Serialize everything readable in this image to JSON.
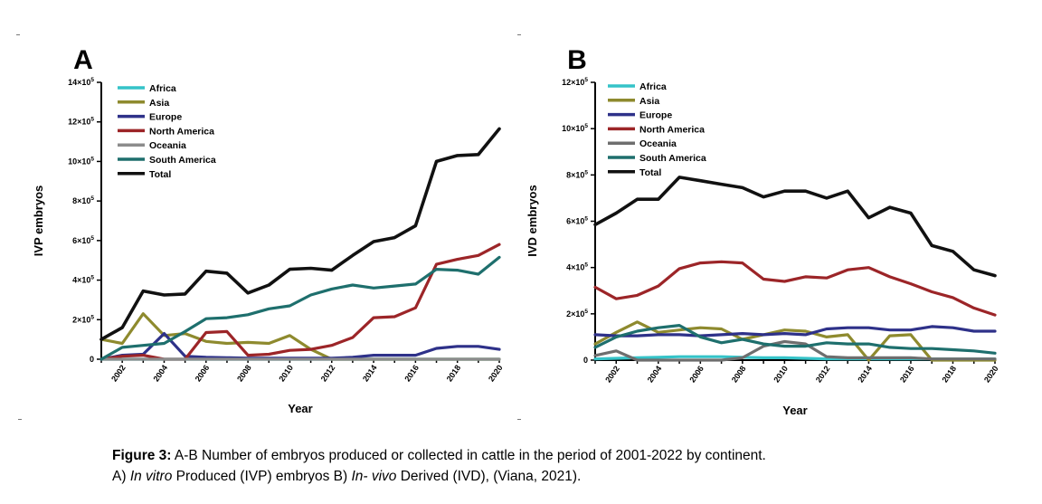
{
  "chart_data": [
    {
      "type": "line",
      "panel_label": "A",
      "xlabel": "Year",
      "ylabel": "IVP embryos",
      "x": [
        2001,
        2002,
        2003,
        2004,
        2005,
        2006,
        2007,
        2008,
        2009,
        2010,
        2011,
        2012,
        2013,
        2014,
        2015,
        2016,
        2017,
        2018,
        2019,
        2020
      ],
      "xticks": [
        "2002",
        "2004",
        "2006",
        "2008",
        "2010",
        "2012",
        "2014",
        "2016",
        "2018",
        "2020"
      ],
      "yticks": [
        {
          "value": 0,
          "base": "0",
          "exp": ""
        },
        {
          "value": 200000,
          "base": "2×10",
          "exp": "5"
        },
        {
          "value": 400000,
          "base": "4×10",
          "exp": "5"
        },
        {
          "value": 600000,
          "base": "6×10",
          "exp": "5"
        },
        {
          "value": 800000,
          "base": "8×10",
          "exp": "5"
        },
        {
          "value": 1000000,
          "base": "10×10",
          "exp": "5"
        },
        {
          "value": 1200000,
          "base": "12×10",
          "exp": "5"
        },
        {
          "value": 1400000,
          "base": "14×10",
          "exp": "5"
        }
      ],
      "ylim": [
        0,
        1400000
      ],
      "legend_position": "top-left",
      "series": [
        {
          "name": "Africa",
          "color": "#35c3c8",
          "values": [
            0,
            0,
            0,
            0,
            0,
            0,
            0,
            0,
            0,
            0,
            0,
            0,
            0,
            0,
            0,
            0,
            0,
            0,
            0,
            0
          ]
        },
        {
          "name": "Asia",
          "color": "#8e8a2e",
          "values": [
            100000,
            80000,
            230000,
            120000,
            130000,
            90000,
            80000,
            85000,
            80000,
            120000,
            50000,
            0,
            0,
            0,
            0,
            0,
            0,
            0,
            0,
            0
          ]
        },
        {
          "name": "Europe",
          "color": "#2e3189",
          "values": [
            0,
            20000,
            25000,
            130000,
            15000,
            10000,
            8000,
            5000,
            5000,
            5000,
            5000,
            5000,
            10000,
            20000,
            20000,
            20000,
            55000,
            65000,
            65000,
            50000
          ]
        },
        {
          "name": "North America",
          "color": "#9c2528",
          "values": [
            0,
            15000,
            20000,
            0,
            0,
            135000,
            140000,
            20000,
            25000,
            45000,
            50000,
            70000,
            110000,
            210000,
            215000,
            260000,
            480000,
            505000,
            525000,
            580000
          ]
        },
        {
          "name": "Oceania",
          "color": "#8c8c8c",
          "values": [
            0,
            0,
            0,
            0,
            0,
            0,
            0,
            0,
            0,
            0,
            0,
            0,
            0,
            0,
            0,
            0,
            0,
            0,
            0,
            0
          ]
        },
        {
          "name": "South America",
          "color": "#1e6f6d",
          "values": [
            0,
            60000,
            70000,
            80000,
            140000,
            205000,
            210000,
            225000,
            255000,
            270000,
            325000,
            355000,
            375000,
            360000,
            370000,
            380000,
            455000,
            450000,
            430000,
            515000
          ]
        },
        {
          "name": "Total",
          "color": "#111111",
          "values": [
            100000,
            160000,
            345000,
            325000,
            330000,
            445000,
            435000,
            335000,
            375000,
            455000,
            460000,
            450000,
            525000,
            595000,
            615000,
            675000,
            1000000,
            1030000,
            1035000,
            1165000
          ]
        }
      ]
    },
    {
      "type": "line",
      "panel_label": "B",
      "xlabel": "Year",
      "ylabel": "IVD embryos",
      "x": [
        2001,
        2002,
        2003,
        2004,
        2005,
        2006,
        2007,
        2008,
        2009,
        2010,
        2011,
        2012,
        2013,
        2014,
        2015,
        2016,
        2017,
        2018,
        2019,
        2020
      ],
      "xticks": [
        "2002",
        "2004",
        "2006",
        "2008",
        "2010",
        "2012",
        "2014",
        "2016",
        "2018",
        "2020"
      ],
      "yticks": [
        {
          "value": 0,
          "base": "0",
          "exp": ""
        },
        {
          "value": 200000,
          "base": "2×10",
          "exp": "5"
        },
        {
          "value": 400000,
          "base": "4×10",
          "exp": "5"
        },
        {
          "value": 600000,
          "base": "6×10",
          "exp": "5"
        },
        {
          "value": 800000,
          "base": "8×10",
          "exp": "5"
        },
        {
          "value": 1000000,
          "base": "10×10",
          "exp": "5"
        },
        {
          "value": 1200000,
          "base": "12×10",
          "exp": "5"
        }
      ],
      "ylim": [
        0,
        1200000
      ],
      "legend_position": "top-left",
      "series": [
        {
          "name": "Africa",
          "color": "#35c3c8",
          "values": [
            5000,
            8000,
            10000,
            12000,
            15000,
            15000,
            15000,
            12000,
            10000,
            10000,
            8000,
            5000,
            5000,
            5000,
            5000,
            5000,
            5000,
            5000,
            5000,
            5000
          ]
        },
        {
          "name": "Asia",
          "color": "#8e8a2e",
          "values": [
            70000,
            120000,
            165000,
            120000,
            130000,
            140000,
            135000,
            90000,
            110000,
            130000,
            125000,
            100000,
            110000,
            0,
            105000,
            110000,
            0,
            0,
            0,
            0
          ]
        },
        {
          "name": "Europe",
          "color": "#2e3189",
          "values": [
            110000,
            105000,
            105000,
            110000,
            110000,
            105000,
            110000,
            115000,
            110000,
            115000,
            110000,
            135000,
            140000,
            140000,
            130000,
            130000,
            145000,
            140000,
            125000,
            125000
          ]
        },
        {
          "name": "North America",
          "color": "#9c2528",
          "values": [
            315000,
            265000,
            280000,
            320000,
            395000,
            420000,
            425000,
            420000,
            350000,
            340000,
            360000,
            355000,
            390000,
            400000,
            360000,
            330000,
            295000,
            270000,
            225000,
            195000
          ]
        },
        {
          "name": "Oceania",
          "color": "#6e6e6e",
          "values": [
            20000,
            40000,
            0,
            0,
            0,
            0,
            0,
            10000,
            60000,
            80000,
            70000,
            15000,
            10000,
            10000,
            10000,
            10000,
            5000,
            5000,
            5000,
            5000
          ]
        },
        {
          "name": "South America",
          "color": "#1e6f6d",
          "values": [
            55000,
            100000,
            125000,
            140000,
            150000,
            100000,
            75000,
            90000,
            70000,
            60000,
            60000,
            75000,
            70000,
            70000,
            55000,
            50000,
            50000,
            45000,
            40000,
            30000
          ]
        },
        {
          "name": "Total",
          "color": "#111111",
          "values": [
            585000,
            635000,
            695000,
            695000,
            790000,
            775000,
            760000,
            745000,
            705000,
            730000,
            730000,
            700000,
            730000,
            615000,
            660000,
            635000,
            495000,
            470000,
            390000,
            365000
          ]
        }
      ]
    }
  ],
  "caption": {
    "line1_bold": "Figure 3:",
    "line1_rest": " A-B Number of embryos produced or collected in cattle in the period of 2001-2022 by continent.",
    "line2_part1": "A) ",
    "line2_italic1": "In vitro",
    "line2_part2": " Produced (IVP) embryos B) ",
    "line2_italic2": "In- vivo",
    "line2_part3": " Derived (IVD), (Viana, 2021)."
  }
}
